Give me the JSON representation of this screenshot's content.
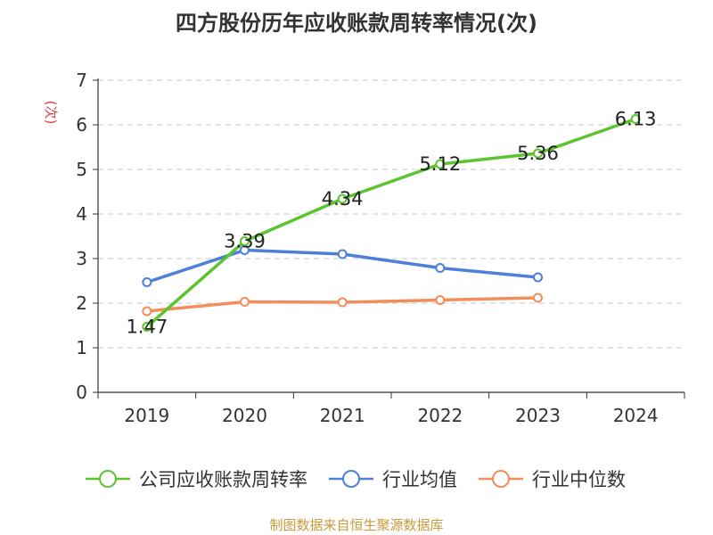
{
  "chart_data": {
    "type": "line",
    "title": "四方股份历年应收账款周转率情况(次)",
    "ylabel": "(次)",
    "xlabel": "",
    "categories": [
      "2019",
      "2020",
      "2021",
      "2022",
      "2023",
      "2024"
    ],
    "ylim": [
      0,
      7
    ],
    "yticks": [
      "0",
      "1",
      "2",
      "3",
      "4",
      "5",
      "6",
      "7"
    ],
    "grid": true,
    "legend_position": "bottom",
    "series": [
      {
        "name": "公司应收账款周转率",
        "color": "#5bc42f",
        "values": [
          1.47,
          3.39,
          4.34,
          5.12,
          5.36,
          6.13
        ],
        "labels": [
          "1.47",
          "3.39",
          "4.34",
          "5.12",
          "5.36",
          "6.13"
        ],
        "show_labels": true
      },
      {
        "name": "行业均值",
        "color": "#4e7fd9",
        "values": [
          2.47,
          3.19,
          3.1,
          2.79,
          2.58,
          null
        ],
        "show_labels": false
      },
      {
        "name": "行业中位数",
        "color": "#f28e5a",
        "values": [
          1.82,
          2.03,
          2.02,
          2.07,
          2.12,
          null
        ],
        "show_labels": false
      }
    ]
  },
  "source": "制图数据来自恒生聚源数据库"
}
